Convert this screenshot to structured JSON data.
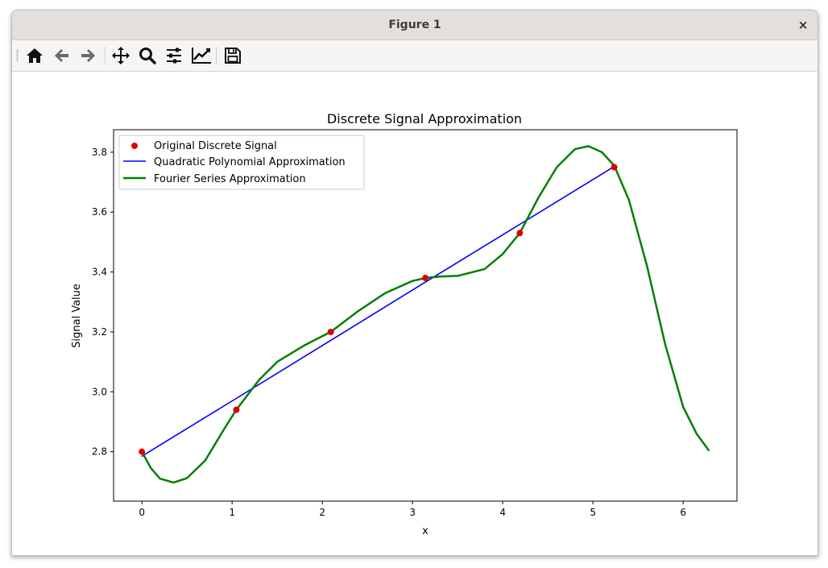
{
  "window": {
    "title": "Figure 1",
    "close_glyph": "×"
  },
  "toolbar": {
    "buttons": [
      {
        "name": "home-icon"
      },
      {
        "name": "back-arrow-icon"
      },
      {
        "name": "forward-arrow-icon"
      },
      {
        "name": "pan-icon"
      },
      {
        "name": "zoom-icon"
      },
      {
        "name": "configure-subplots-icon"
      },
      {
        "name": "edit-axis-icon"
      },
      {
        "name": "save-icon"
      }
    ]
  },
  "chart_data": {
    "type": "line",
    "title": "Discrete Signal Approximation",
    "xlabel": "x",
    "ylabel": "Signal Value",
    "xlim": [
      -0.314,
      6.597
    ],
    "ylim": [
      2.635,
      3.875
    ],
    "xticks": [
      0,
      1,
      2,
      3,
      4,
      5,
      6
    ],
    "yticks": [
      2.8,
      3.0,
      3.2,
      3.4,
      3.6,
      3.8
    ],
    "ytick_labels": [
      "2.8",
      "3.0",
      "3.2",
      "3.4",
      "3.6",
      "3.8"
    ],
    "grid": false,
    "legend_position": "upper-left",
    "series": [
      {
        "name": "Original Discrete Signal",
        "kind": "scatter",
        "color": "#e00000",
        "x": [
          0,
          1.047,
          2.094,
          3.142,
          4.189,
          5.236
        ],
        "y": [
          2.8,
          2.94,
          3.2,
          3.38,
          3.53,
          3.75
        ]
      },
      {
        "name": "Quadratic Polynomial Approximation",
        "kind": "line",
        "color": "#0000ff",
        "x": [
          0,
          1.047,
          2.094,
          3.142,
          4.189,
          5.236
        ],
        "y": [
          2.785,
          2.978,
          3.172,
          3.366,
          3.559,
          3.752
        ]
      },
      {
        "name": "Fourier Series Approximation",
        "kind": "line",
        "color": "#008000",
        "x": [
          0,
          0.1,
          0.2,
          0.35,
          0.5,
          0.7,
          0.9,
          1.047,
          1.3,
          1.5,
          1.8,
          2.094,
          2.4,
          2.7,
          3.0,
          3.142,
          3.3,
          3.5,
          3.8,
          4.0,
          4.189,
          4.4,
          4.6,
          4.8,
          4.95,
          5.1,
          5.236,
          5.4,
          5.6,
          5.8,
          6.0,
          6.15,
          6.283
        ],
        "y": [
          2.8,
          2.745,
          2.71,
          2.697,
          2.712,
          2.77,
          2.87,
          2.94,
          3.04,
          3.1,
          3.155,
          3.2,
          3.27,
          3.33,
          3.37,
          3.38,
          3.385,
          3.387,
          3.41,
          3.46,
          3.53,
          3.65,
          3.75,
          3.81,
          3.82,
          3.8,
          3.755,
          3.64,
          3.42,
          3.16,
          2.95,
          2.86,
          2.805
        ]
      }
    ]
  }
}
